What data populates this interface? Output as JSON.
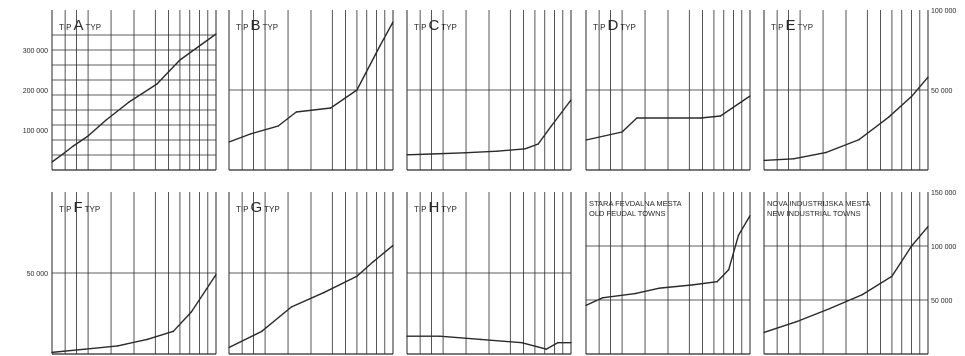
{
  "chart_data": [
    {
      "type": "line",
      "row": 1,
      "title_parts": [
        "TIP",
        "A",
        "TYP"
      ],
      "y_ticks": [
        {
          "v": 300000,
          "label": "300 000"
        },
        {
          "v": 200000,
          "label": "200 000"
        },
        {
          "v": 100000,
          "label": "100 000"
        }
      ],
      "y_tick_side": "left",
      "ylim": [
        0,
        400000
      ],
      "grid_h": [
        37500,
        75000,
        112500,
        150000,
        187500,
        225000,
        262500,
        300000,
        337500
      ],
      "x": [
        0,
        0.06,
        0.13,
        0.22,
        0.33,
        0.47,
        0.64,
        0.78,
        1.0
      ],
      "values": [
        20000,
        38000,
        60000,
        85000,
        125000,
        170000,
        215000,
        275000,
        340000
      ]
    },
    {
      "type": "line",
      "row": 1,
      "title_parts": [
        "TIP",
        "B",
        "TYP"
      ],
      "y_ticks": [],
      "ylim": [
        0,
        400000
      ],
      "grid_h": [
        200000
      ],
      "x": [
        0,
        0.13,
        0.3,
        0.41,
        0.62,
        0.78,
        0.92,
        1.0
      ],
      "values": [
        70000,
        90000,
        110000,
        145000,
        155000,
        200000,
        310000,
        370000
      ]
    },
    {
      "type": "line",
      "row": 1,
      "title_parts": [
        "TIP",
        "C",
        "TYP"
      ],
      "y_ticks": [],
      "ylim": [
        0,
        400000
      ],
      "grid_h": [
        200000
      ],
      "x": [
        0,
        0.15,
        0.35,
        0.55,
        0.72,
        0.8,
        0.88,
        1.0
      ],
      "values": [
        38000,
        40000,
        43000,
        47000,
        53000,
        65000,
        110000,
        175000
      ]
    },
    {
      "type": "line",
      "row": 1,
      "title_parts": [
        "TIP",
        "D",
        "TYP"
      ],
      "y_ticks": [],
      "ylim": [
        0,
        400000
      ],
      "grid_h": [
        200000
      ],
      "x": [
        0,
        0.22,
        0.31,
        0.5,
        0.7,
        0.82,
        1.0
      ],
      "values": [
        75000,
        95000,
        130000,
        130000,
        130000,
        135000,
        185000
      ]
    },
    {
      "type": "line",
      "row": 1,
      "title_parts": [
        "TIP",
        "E",
        "TYP"
      ],
      "y_ticks": [
        {
          "v": 100000,
          "label": "100 000"
        },
        {
          "v": 50000,
          "label": "50 000"
        }
      ],
      "y_tick_side": "right",
      "ylim": [
        0,
        100000
      ],
      "grid_h": [
        50000
      ],
      "x": [
        0,
        0.18,
        0.38,
        0.58,
        0.76,
        0.9,
        1.0
      ],
      "values": [
        6000,
        7000,
        11000,
        19000,
        33000,
        46000,
        58000
      ]
    },
    {
      "type": "line",
      "row": 2,
      "title_parts": [
        "TIP",
        "F",
        "TYP"
      ],
      "y_ticks": [
        {
          "v": 50000,
          "label": "50 000"
        }
      ],
      "y_tick_side": "left",
      "ylim": [
        0,
        100000
      ],
      "grid_h": [
        50000
      ],
      "x": [
        0,
        0.2,
        0.4,
        0.58,
        0.74,
        0.85,
        1.0
      ],
      "values": [
        1000,
        3000,
        5000,
        9000,
        14000,
        26000,
        49000
      ]
    },
    {
      "type": "line",
      "row": 2,
      "title_parts": [
        "TIP",
        "G",
        "TYP"
      ],
      "y_ticks": [],
      "ylim": [
        0,
        100000
      ],
      "grid_h": [
        50000
      ],
      "x": [
        0,
        0.2,
        0.38,
        0.58,
        0.78,
        0.88,
        1.0
      ],
      "values": [
        4000,
        14000,
        29000,
        38000,
        48000,
        57000,
        67000
      ]
    },
    {
      "type": "line",
      "row": 2,
      "title_parts": [
        "TIP",
        "H",
        "TYP"
      ],
      "y_ticks": [],
      "ylim": [
        0,
        100000
      ],
      "grid_h": [
        50000
      ],
      "x": [
        0,
        0.2,
        0.45,
        0.7,
        0.85,
        0.92,
        1.0
      ],
      "values": [
        11000,
        11000,
        9000,
        7000,
        3000,
        7000,
        7000
      ]
    },
    {
      "type": "line",
      "row": 2,
      "title_lines": [
        "STARA FEVDALNA MESTA",
        "OLD FEUDAL TOWNS"
      ],
      "y_ticks": [],
      "ylim": [
        0,
        150000
      ],
      "grid_h": [
        50000,
        100000
      ],
      "x": [
        0,
        0.1,
        0.3,
        0.45,
        0.65,
        0.8,
        0.87,
        0.93,
        1.0
      ],
      "values": [
        45000,
        52000,
        56000,
        61000,
        64000,
        67000,
        78000,
        110000,
        128000
      ]
    },
    {
      "type": "line",
      "row": 2,
      "title_lines": [
        "NOVA INDUSTRIJSKA MESTA",
        "NEW INDUSTRIAL TOWNS"
      ],
      "y_ticks": [
        {
          "v": 150000,
          "label": "150 000"
        },
        {
          "v": 100000,
          "label": "100 000"
        },
        {
          "v": 50000,
          "label": "50 000"
        }
      ],
      "y_tick_side": "right",
      "ylim": [
        0,
        150000
      ],
      "grid_h": [
        50000,
        100000
      ],
      "x": [
        0,
        0.2,
        0.4,
        0.6,
        0.78,
        0.9,
        1.0
      ],
      "values": [
        20000,
        30000,
        42000,
        55000,
        72000,
        100000,
        118000
      ]
    }
  ],
  "colors": {
    "ink": "#2a2a2a",
    "paper": "#ffffff"
  }
}
